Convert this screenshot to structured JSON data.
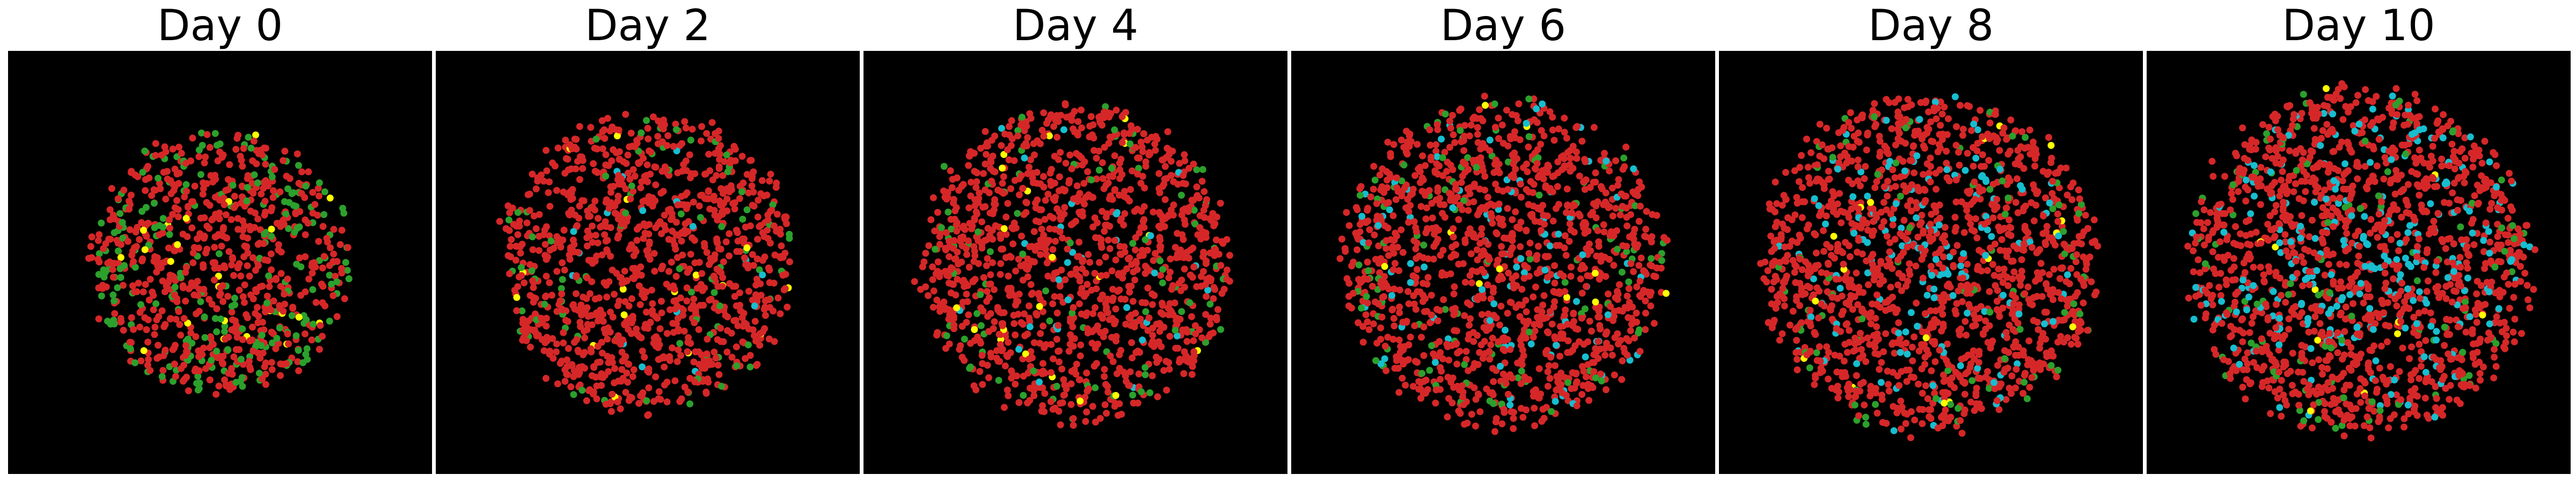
{
  "colors": {
    "background": "#000000",
    "red_cells": "#d62728",
    "green_cells": "#2ca02c",
    "cyan_cells": "#17becf",
    "yellow_cells": "#ffff00"
  },
  "panels": [
    {
      "title": "Day 0",
      "composition": {
        "red": 0.72,
        "green": 0.22,
        "cyan": 0.0,
        "yellow": 0.02
      },
      "spread": 0.62,
      "point_count": 900
    },
    {
      "title": "Day 2",
      "composition": {
        "red": 0.88,
        "green": 0.07,
        "cyan": 0.02,
        "yellow": 0.015
      },
      "spread": 0.7,
      "point_count": 1150
    },
    {
      "title": "Day 4",
      "composition": {
        "red": 0.9,
        "green": 0.06,
        "cyan": 0.02,
        "yellow": 0.015
      },
      "spread": 0.74,
      "point_count": 1300
    },
    {
      "title": "Day 6",
      "composition": {
        "red": 0.87,
        "green": 0.06,
        "cyan": 0.06,
        "yellow": 0.01
      },
      "spread": 0.76,
      "point_count": 1400
    },
    {
      "title": "Day 8",
      "composition": {
        "red": 0.82,
        "green": 0.05,
        "cyan": 0.12,
        "yellow": 0.01
      },
      "spread": 0.8,
      "point_count": 1550
    },
    {
      "title": "Day 10",
      "composition": {
        "red": 0.78,
        "green": 0.05,
        "cyan": 0.16,
        "yellow": 0.01
      },
      "spread": 0.82,
      "point_count": 1650
    }
  ]
}
